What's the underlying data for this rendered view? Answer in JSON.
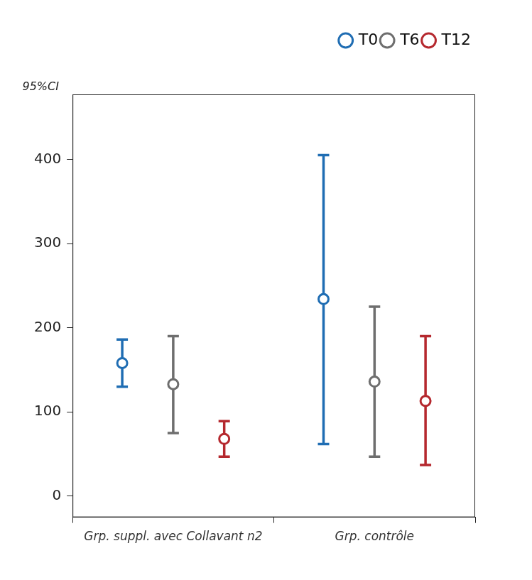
{
  "chart_data": {
    "type": "errorbar",
    "y_label": "95%CI",
    "categories": [
      "Grp. suppl. avec Collavant n2",
      "Grp. contrôle"
    ],
    "series": [
      {
        "name": "T0",
        "color": "#1f6db3",
        "marker": "circle",
        "values": [
          158,
          234
        ],
        "ci_low": [
          130,
          62
        ],
        "ci_high": [
          186,
          405
        ]
      },
      {
        "name": "T6",
        "color": "#6e6e6e",
        "marker": "circle",
        "values": [
          133,
          136
        ],
        "ci_low": [
          75,
          47
        ],
        "ci_high": [
          190,
          225
        ]
      },
      {
        "name": "T12",
        "color": "#b5282e",
        "marker": "circle",
        "values": [
          68,
          113
        ],
        "ci_low": [
          47,
          37
        ],
        "ci_high": [
          89,
          190
        ]
      }
    ],
    "ylim": [
      -25,
      477
    ],
    "yticks": [
      0,
      100,
      200,
      300,
      400
    ],
    "grid": false,
    "legend": "top-right"
  }
}
